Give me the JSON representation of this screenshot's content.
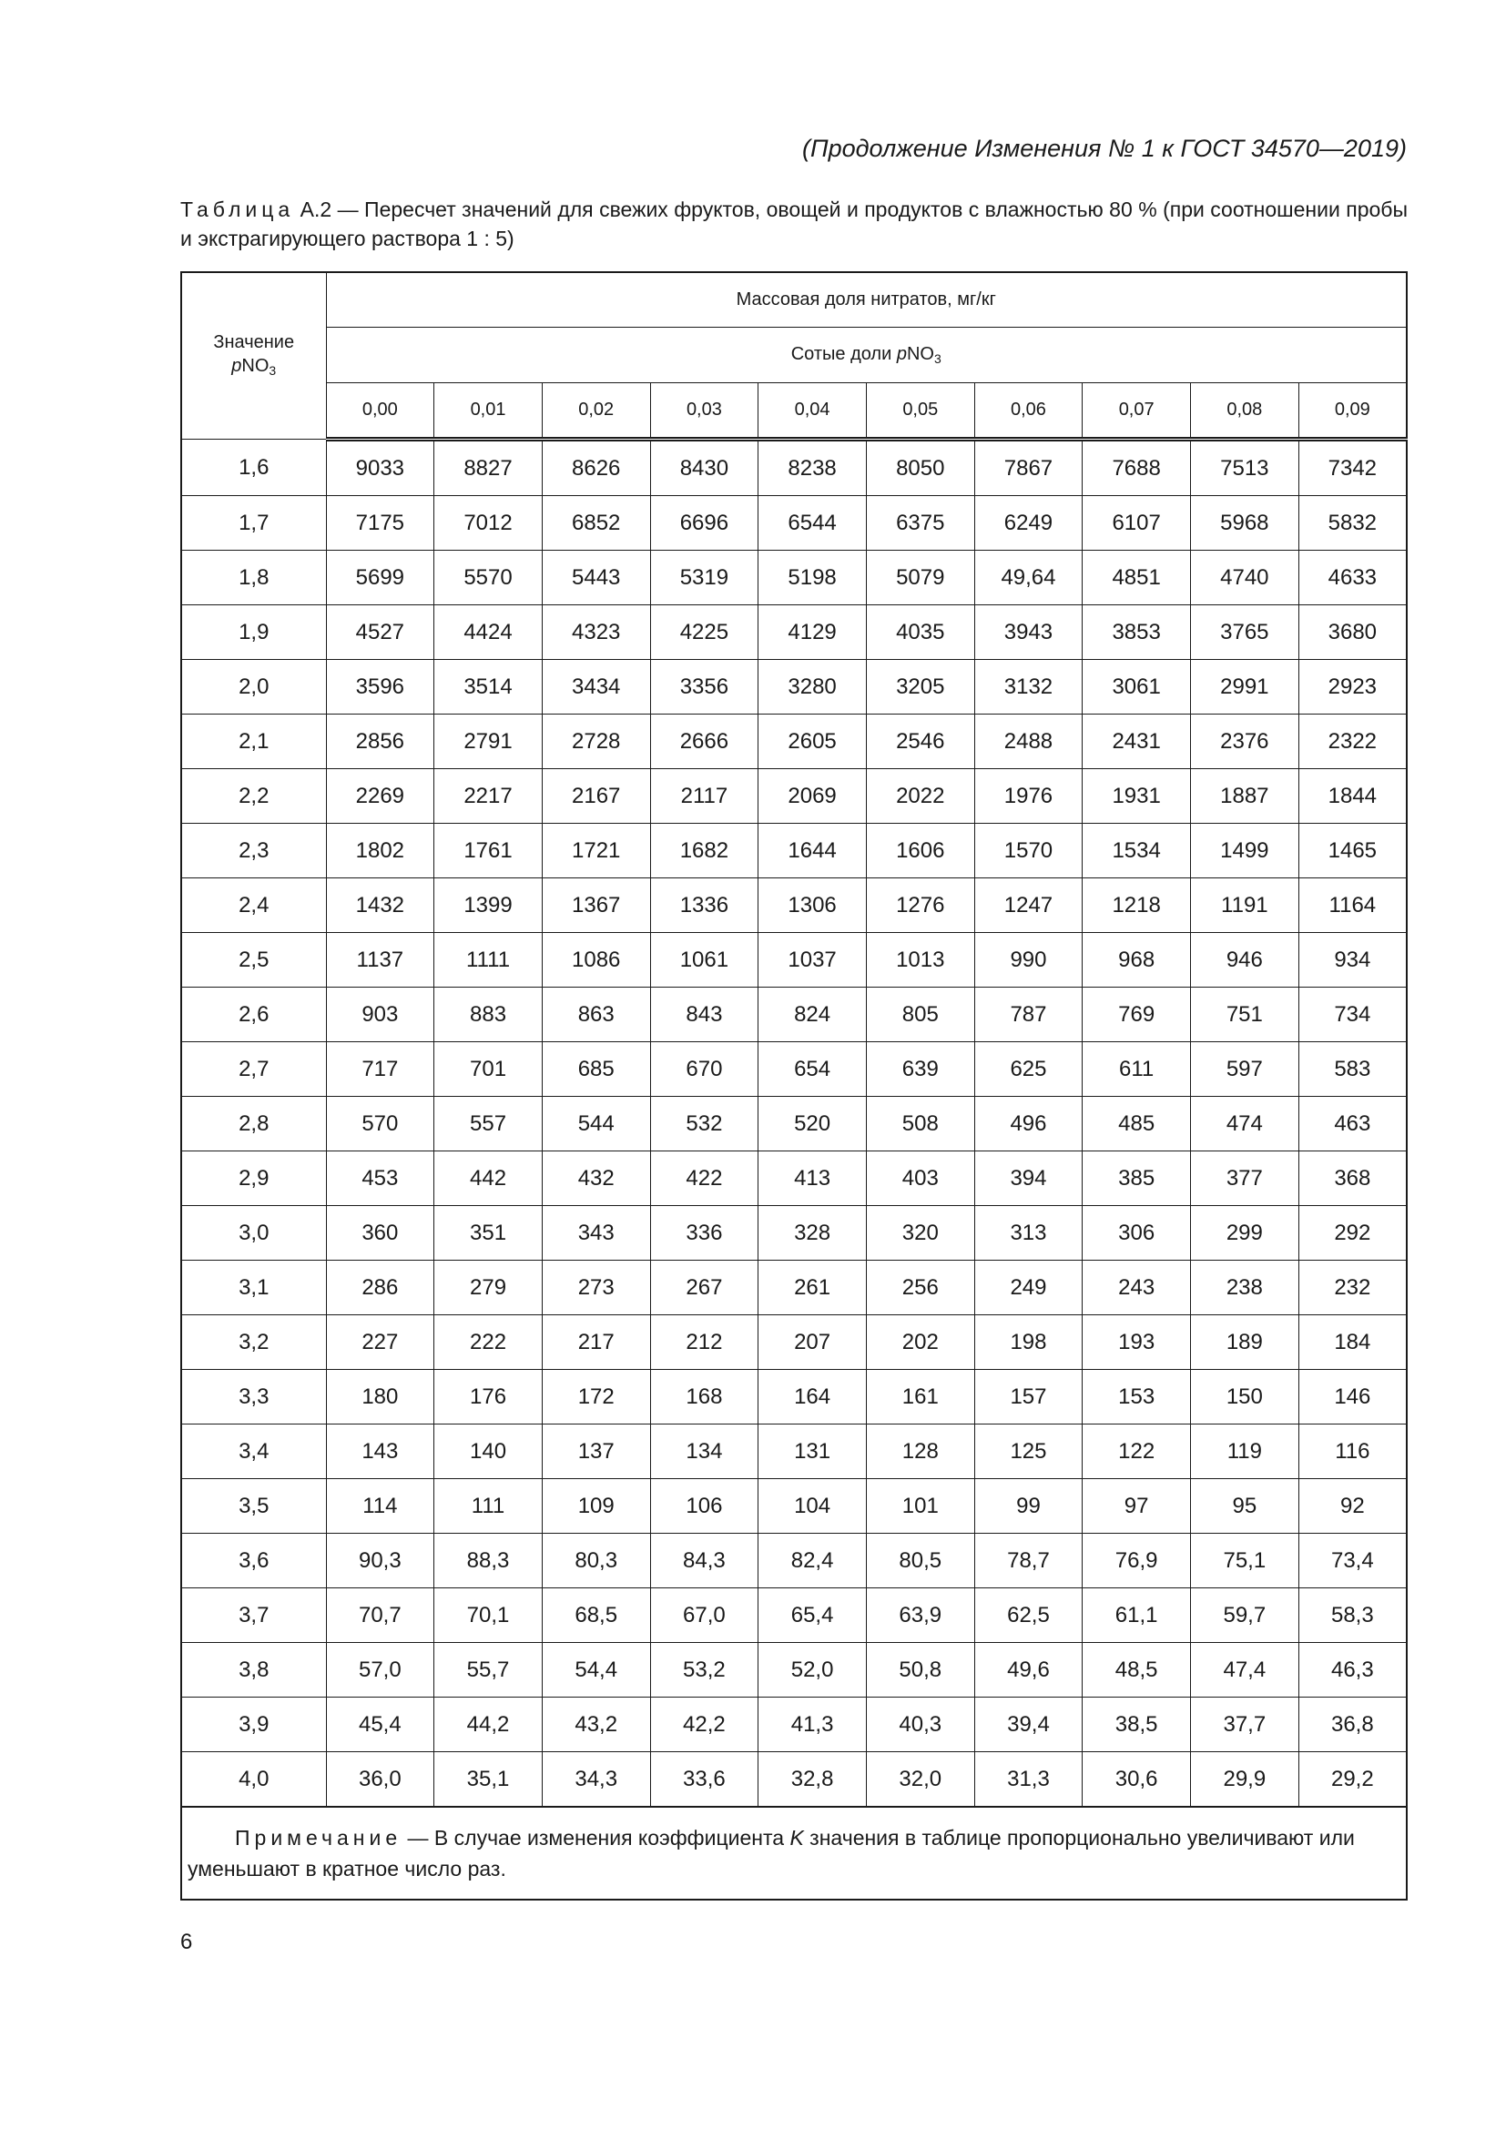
{
  "running_head": "(Продолжение Изменения № 1 к ГОСТ 34570—2019)",
  "caption": {
    "label": "Таблица",
    "text": " А.2 — Пересчет значений для свежих фруктов, овощей и продуктов с влажностью 80 % (при соотношении пробы и экстрагирующего раствора 1 : 5)"
  },
  "table": {
    "stub_header": {
      "line1": "Значение",
      "p": "p",
      "formula": "NO",
      "sub": "3"
    },
    "group_header": "Массовая доля нитратов, мг/кг",
    "subgroup_header": {
      "text": "Сотые доли ",
      "p": "p",
      "formula": "NO",
      "sub": "3"
    },
    "columns": [
      "0,00",
      "0,01",
      "0,02",
      "0,03",
      "0,04",
      "0,05",
      "0,06",
      "0,07",
      "0,08",
      "0,09"
    ],
    "rows": [
      {
        "label": "1,6",
        "values": [
          "9033",
          "8827",
          "8626",
          "8430",
          "8238",
          "8050",
          "7867",
          "7688",
          "7513",
          "7342"
        ]
      },
      {
        "label": "1,7",
        "values": [
          "7175",
          "7012",
          "6852",
          "6696",
          "6544",
          "6375",
          "6249",
          "6107",
          "5968",
          "5832"
        ]
      },
      {
        "label": "1,8",
        "values": [
          "5699",
          "5570",
          "5443",
          "5319",
          "5198",
          "5079",
          "49,64",
          "4851",
          "4740",
          "4633"
        ]
      },
      {
        "label": "1,9",
        "values": [
          "4527",
          "4424",
          "4323",
          "4225",
          "4129",
          "4035",
          "3943",
          "3853",
          "3765",
          "3680"
        ]
      },
      {
        "label": "2,0",
        "values": [
          "3596",
          "3514",
          "3434",
          "3356",
          "3280",
          "3205",
          "3132",
          "3061",
          "2991",
          "2923"
        ]
      },
      {
        "label": "2,1",
        "values": [
          "2856",
          "2791",
          "2728",
          "2666",
          "2605",
          "2546",
          "2488",
          "2431",
          "2376",
          "2322"
        ]
      },
      {
        "label": "2,2",
        "values": [
          "2269",
          "2217",
          "2167",
          "2117",
          "2069",
          "2022",
          "1976",
          "1931",
          "1887",
          "1844"
        ]
      },
      {
        "label": "2,3",
        "values": [
          "1802",
          "1761",
          "1721",
          "1682",
          "1644",
          "1606",
          "1570",
          "1534",
          "1499",
          "1465"
        ]
      },
      {
        "label": "2,4",
        "values": [
          "1432",
          "1399",
          "1367",
          "1336",
          "1306",
          "1276",
          "1247",
          "1218",
          "1191",
          "1164"
        ]
      },
      {
        "label": "2,5",
        "values": [
          "1137",
          "1111",
          "1086",
          "1061",
          "1037",
          "1013",
          "990",
          "968",
          "946",
          "934"
        ]
      },
      {
        "label": "2,6",
        "values": [
          "903",
          "883",
          "863",
          "843",
          "824",
          "805",
          "787",
          "769",
          "751",
          "734"
        ]
      },
      {
        "label": "2,7",
        "values": [
          "717",
          "701",
          "685",
          "670",
          "654",
          "639",
          "625",
          "611",
          "597",
          "583"
        ]
      },
      {
        "label": "2,8",
        "values": [
          "570",
          "557",
          "544",
          "532",
          "520",
          "508",
          "496",
          "485",
          "474",
          "463"
        ]
      },
      {
        "label": "2,9",
        "values": [
          "453",
          "442",
          "432",
          "422",
          "413",
          "403",
          "394",
          "385",
          "377",
          "368"
        ]
      },
      {
        "label": "3,0",
        "values": [
          "360",
          "351",
          "343",
          "336",
          "328",
          "320",
          "313",
          "306",
          "299",
          "292"
        ]
      },
      {
        "label": "3,1",
        "values": [
          "286",
          "279",
          "273",
          "267",
          "261",
          "256",
          "249",
          "243",
          "238",
          "232"
        ]
      },
      {
        "label": "3,2",
        "values": [
          "227",
          "222",
          "217",
          "212",
          "207",
          "202",
          "198",
          "193",
          "189",
          "184"
        ]
      },
      {
        "label": "3,3",
        "values": [
          "180",
          "176",
          "172",
          "168",
          "164",
          "161",
          "157",
          "153",
          "150",
          "146"
        ]
      },
      {
        "label": "3,4",
        "values": [
          "143",
          "140",
          "137",
          "134",
          "131",
          "128",
          "125",
          "122",
          "119",
          "116"
        ]
      },
      {
        "label": "3,5",
        "values": [
          "114",
          "111",
          "109",
          "106",
          "104",
          "101",
          "99",
          "97",
          "95",
          "92"
        ]
      },
      {
        "label": "3,6",
        "values": [
          "90,3",
          "88,3",
          "80,3",
          "84,3",
          "82,4",
          "80,5",
          "78,7",
          "76,9",
          "75,1",
          "73,4"
        ]
      },
      {
        "label": "3,7",
        "values": [
          "70,7",
          "70,1",
          "68,5",
          "67,0",
          "65,4",
          "63,9",
          "62,5",
          "61,1",
          "59,7",
          "58,3"
        ]
      },
      {
        "label": "3,8",
        "values": [
          "57,0",
          "55,7",
          "54,4",
          "53,2",
          "52,0",
          "50,8",
          "49,6",
          "48,5",
          "47,4",
          "46,3"
        ]
      },
      {
        "label": "3,9",
        "values": [
          "45,4",
          "44,2",
          "43,2",
          "42,2",
          "41,3",
          "40,3",
          "39,4",
          "38,5",
          "37,7",
          "36,8"
        ]
      },
      {
        "label": "4,0",
        "values": [
          "36,0",
          "35,1",
          "34,3",
          "33,6",
          "32,8",
          "32,0",
          "31,3",
          "30,6",
          "29,9",
          "29,2"
        ]
      }
    ],
    "note": {
      "label": "Примечание",
      "text_before": " — В случае изменения коэффициента ",
      "k": "K",
      "text_after": " значения в таблице пропорционально увеличивают или уменьшают в кратное число раз."
    }
  },
  "page_number": "6"
}
